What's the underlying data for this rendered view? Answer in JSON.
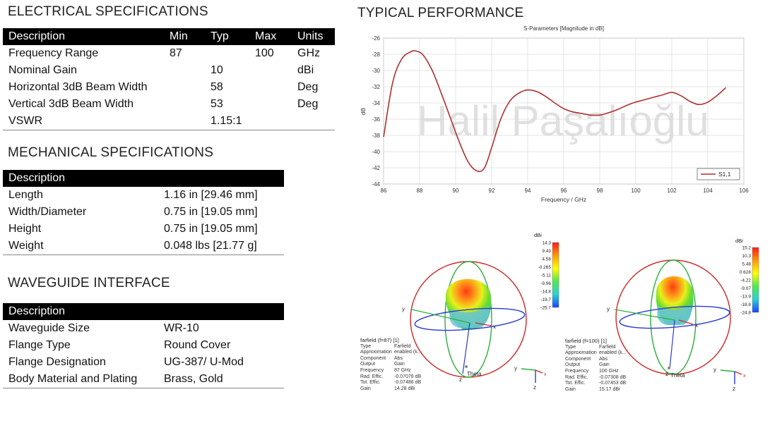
{
  "electrical": {
    "title": "ELECTRICAL SPECIFICATIONS",
    "headers": [
      "Description",
      "Min",
      "Typ",
      "Max",
      "Units"
    ],
    "rows": [
      [
        "Frequency Range",
        "87",
        "",
        "100",
        "GHz"
      ],
      [
        "Nominal Gain",
        "",
        "10",
        "",
        "dBi"
      ],
      [
        "Horizontal 3dB Beam Width",
        "",
        "58",
        "",
        "Deg"
      ],
      [
        "Vertical 3dB Beam Width",
        "",
        "53",
        "",
        "Deg"
      ],
      [
        "VSWR",
        "",
        "1.15:1",
        "",
        ""
      ]
    ]
  },
  "mechanical": {
    "title": "MECHANICAL SPECIFICATIONS",
    "header": "Description",
    "rows": [
      [
        "Length",
        "1.16 in [29.46 mm]"
      ],
      [
        "Width/Diameter",
        "0.75 in [19.05 mm]"
      ],
      [
        "Height",
        "0.75 in [19.05 mm]"
      ],
      [
        "Weight",
        "0.048 lbs [21.77 g]"
      ]
    ]
  },
  "waveguide": {
    "title": "WAVEGUIDE INTERFACE",
    "header": "Description",
    "rows": [
      [
        "Waveguide Size",
        "WR-10"
      ],
      [
        "Flange Type",
        "Round Cover"
      ],
      [
        "Flange Designation",
        "UG-387/ U-Mod"
      ],
      [
        "Body Material and Plating",
        "Brass, Gold"
      ]
    ]
  },
  "performance": {
    "title": "TYPICAL PERFORMANCE",
    "watermark": "Halil Paşalıoğlu"
  },
  "chart_data": {
    "type": "line",
    "title": "S-Parameters [Magnitude in dB]",
    "xlabel": "Frequency / GHz",
    "ylabel": "dB",
    "xlim": [
      86,
      106
    ],
    "ylim": [
      -44,
      -26
    ],
    "xticks": [
      86,
      88,
      90,
      92,
      94,
      96,
      98,
      100,
      102,
      104,
      106
    ],
    "yticks": [
      -26,
      -28,
      -30,
      -32,
      -34,
      -36,
      -38,
      -40,
      -42,
      -44
    ],
    "grid": true,
    "legend": "bottom-right",
    "series": [
      {
        "name": "S1,1",
        "color": "#b03030",
        "x": [
          86,
          86.5,
          87,
          87.5,
          87.8,
          88.2,
          88.7,
          89.2,
          89.7,
          90.2,
          90.7,
          91.2,
          91.6,
          92.0,
          92.5,
          93.0,
          93.5,
          94.0,
          94.5,
          95.0,
          95.5,
          96.0,
          96.5,
          97.0,
          97.5,
          98.0,
          98.5,
          99.0,
          99.5,
          100.0,
          100.5,
          101.0,
          101.5,
          102.0,
          102.5,
          103.0,
          103.5,
          104.0,
          104.5,
          105.0
        ],
        "y": [
          -38.2,
          -31.5,
          -28.6,
          -27.7,
          -27.6,
          -28.1,
          -30.0,
          -32.8,
          -35.8,
          -38.8,
          -41.3,
          -42.4,
          -42.0,
          -39.5,
          -36.0,
          -33.8,
          -32.8,
          -32.4,
          -32.6,
          -33.2,
          -34.0,
          -34.7,
          -35.1,
          -35.3,
          -35.5,
          -35.5,
          -35.2,
          -34.8,
          -34.3,
          -33.9,
          -33.6,
          -33.3,
          -33.0,
          -32.7,
          -33.1,
          -33.8,
          -34.2,
          -33.9,
          -33.1,
          -32.1
        ]
      }
    ]
  },
  "farfield": [
    {
      "colorbar_title": "dBi",
      "colorbar_ticks": [
        "14.3",
        "9.43",
        "4.58",
        "-0.265",
        "-5.11",
        "-9.96",
        "-14.8",
        "-19.7",
        "-25.7"
      ],
      "info_title": "farfield (f=87) [1]",
      "info": [
        [
          "Type",
          "Farfield"
        ],
        [
          "Approximation",
          "enabled (k..."
        ],
        [
          "Component",
          "Abs"
        ],
        [
          "Output",
          "Gain"
        ],
        [
          "Frequency",
          "87 GHz"
        ],
        [
          "Rad. Effic.",
          "-0.07076 dB"
        ],
        [
          "Tot. Effic.",
          "-0.07486 dB"
        ],
        [
          "Gain",
          "14.28 dBi"
        ]
      ],
      "axis_y": "y",
      "axis_x": "x",
      "axis_z": "z",
      "theta": "Theta"
    },
    {
      "colorbar_title": "dBi",
      "colorbar_ticks": [
        "15.2",
        "10.3",
        "5.48",
        "0.628",
        "-4.22",
        "-9.07",
        "-13.9",
        "-18.8",
        "-24.8"
      ],
      "info_title": "farfield (f=100) [1]",
      "info": [
        [
          "Type",
          "Farfield"
        ],
        [
          "Approximation",
          "enabled (k..."
        ],
        [
          "Component",
          "Abs"
        ],
        [
          "Output",
          "Gain"
        ],
        [
          "Frequency",
          "100 GHz"
        ],
        [
          "Rad. Effic.",
          "-0.07308 dB"
        ],
        [
          "Tot. Effic.",
          "-0.07453 dB"
        ],
        [
          "Gain",
          "15.17 dBi"
        ]
      ],
      "axis_y": "y",
      "axis_x": "x",
      "axis_z": "z",
      "theta": "Theta"
    }
  ]
}
